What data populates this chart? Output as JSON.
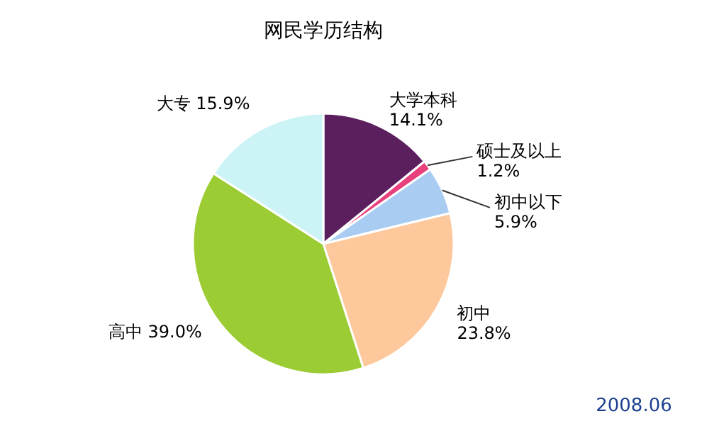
{
  "chart_data": {
    "type": "pie",
    "title": "网民学历结构",
    "categories": [
      "大学本科",
      "硕士及以上",
      "初中以下",
      "初中",
      "高中",
      "大专"
    ],
    "values": [
      14.1,
      1.2,
      5.9,
      23.8,
      39.0,
      15.9
    ],
    "colors": [
      "#5c1f5e",
      "#e8407c",
      "#a9cdf2",
      "#fdc89c",
      "#9ccc33",
      "#ccf4f7"
    ],
    "value_labels": [
      "14.1%",
      "1.2%",
      "5.9%",
      "23.8%",
      "39.0%",
      "15.9%"
    ],
    "annotations": [
      "2008.06"
    ]
  }
}
